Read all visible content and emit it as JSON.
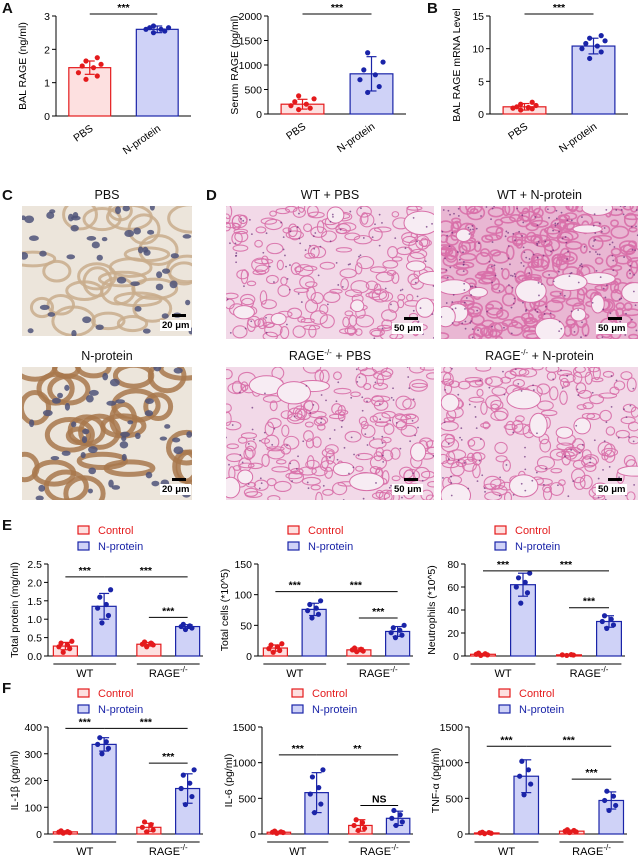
{
  "panel_labels": {
    "a": "A",
    "b": "B",
    "c": "C",
    "d": "D",
    "e": "E",
    "f": "F"
  },
  "image_titles": {
    "c_top": "PBS",
    "c_bottom": "N-protein",
    "d_wt_pbs": "WT + PBS",
    "d_wt_np": "WT + N-protein",
    "d_rage_pbs_main": "RAGE",
    "d_rage_pbs_sup": "-/-",
    "d_rage_pbs_tail": " + PBS",
    "d_rage_np_main": "RAGE",
    "d_rage_np_sup": "-/-",
    "d_rage_np_tail": " + N-protein"
  },
  "scale_labels": {
    "c": "20 μm",
    "d": "50 μm"
  },
  "colors": {
    "control_edge": "#e41a1c",
    "control_fill": "#fde0e0",
    "nprotein_edge": "#1a24a8",
    "nprotein_fill": "#cfd2f7",
    "he_stain": "#d86fa8",
    "he_background": "#f2d9e8",
    "ihc_background": "#ece5db",
    "ihc_tissue": "#b48a5e",
    "ihc_nuclei": "#4f5479"
  },
  "chart_data": [
    {
      "id": "A1",
      "type": "bar",
      "ylabel": "BAL RAGE (ng/ml)",
      "categories": [
        "PBS",
        "N-protein"
      ],
      "values": [
        1.45,
        2.6
      ],
      "errors": [
        0.2,
        0.1
      ],
      "ylim": [
        0,
        3
      ],
      "yticks": [
        "0",
        "1",
        "2",
        "3"
      ],
      "tick_values": [
        0,
        1,
        2,
        3
      ],
      "points": [
        [
          1.1,
          1.2,
          1.3,
          1.45,
          1.5,
          1.55,
          1.65,
          1.75
        ],
        [
          2.5,
          2.55,
          2.6,
          2.6,
          2.65,
          2.65,
          2.7
        ]
      ],
      "sig": [
        {
          "a": 0,
          "b": 1,
          "label": "***"
        }
      ]
    },
    {
      "id": "A2",
      "type": "bar",
      "ylabel": "Serum RAGE (pg/ml)",
      "categories": [
        "PBS",
        "N-protein"
      ],
      "values": [
        200,
        820
      ],
      "errors": [
        100,
        350
      ],
      "ylim": [
        0,
        2000
      ],
      "yticks": [
        "0",
        "500",
        "1000",
        "1500",
        "2000"
      ],
      "tick_values": [
        0,
        500,
        1000,
        1500,
        2000
      ],
      "points": [
        [
          90,
          120,
          170,
          200,
          250,
          310,
          370
        ],
        [
          440,
          560,
          700,
          800,
          900,
          1060,
          1250
        ]
      ],
      "sig": [
        {
          "a": 0,
          "b": 1,
          "label": "***"
        }
      ]
    },
    {
      "id": "B",
      "type": "bar",
      "ylabel": "BAL RAGE mRNA Level",
      "categories": [
        "PBS",
        "N-protein"
      ],
      "values": [
        1.1,
        10.4
      ],
      "errors": [
        0.5,
        1.2
      ],
      "ylim": [
        0,
        15
      ],
      "yticks": [
        "0",
        "5",
        "10",
        "15"
      ],
      "tick_values": [
        0,
        5,
        10,
        15
      ],
      "points": [
        [
          0.6,
          0.8,
          0.9,
          1.0,
          1.1,
          1.3,
          1.5,
          1.8
        ],
        [
          8.5,
          9.5,
          10.0,
          10.4,
          10.8,
          11.2,
          11.6,
          12.0
        ]
      ],
      "sig": [
        {
          "a": 0,
          "b": 1,
          "label": "***"
        }
      ]
    },
    {
      "id": "E1",
      "type": "bar",
      "ylabel": "Total protein (mg/ml)",
      "groups": [
        "WT",
        "RAGE"
      ],
      "group_sup": "-/-",
      "series": [
        {
          "name": "Control",
          "values": [
            0.27,
            0.32
          ],
          "errors": [
            0.1,
            0.05
          ]
        },
        {
          "name": "N-protein",
          "values": [
            1.35,
            0.8
          ],
          "errors": [
            0.35,
            0.05
          ]
        }
      ],
      "ylim": [
        0,
        2.5
      ],
      "yticks": [
        "0.0",
        "0.5",
        "1.0",
        "1.5",
        "2.0",
        "2.5"
      ],
      "tick_values": [
        0,
        0.5,
        1,
        1.5,
        2,
        2.5
      ],
      "points": [
        [
          0.1,
          0.2,
          0.25,
          0.3,
          0.35,
          0.4
        ],
        [
          0.9,
          1.1,
          1.3,
          1.4,
          1.6,
          1.8
        ],
        [
          0.25,
          0.3,
          0.32,
          0.35,
          0.38
        ],
        [
          0.72,
          0.76,
          0.8,
          0.82,
          0.86
        ]
      ],
      "sig": [
        {
          "a": 0,
          "b": 1,
          "label": "***",
          "level": 2.15
        },
        {
          "a": 1,
          "b": 3,
          "label": "***",
          "level": 2.15
        },
        {
          "a": 2,
          "b": 3,
          "label": "***",
          "level": 1.05
        }
      ]
    },
    {
      "id": "E2",
      "type": "bar",
      "ylabel": "Total cells (*10^5)",
      "groups": [
        "WT",
        "RAGE"
      ],
      "group_sup": "-/-",
      "series": [
        {
          "name": "Control",
          "values": [
            13,
            10
          ],
          "errors": [
            5,
            3
          ]
        },
        {
          "name": "N-protein",
          "values": [
            76,
            40
          ],
          "errors": [
            10,
            8
          ]
        }
      ],
      "ylim": [
        0,
        150
      ],
      "yticks": [
        "0",
        "50",
        "100",
        "150"
      ],
      "tick_values": [
        0,
        50,
        100,
        150
      ],
      "points": [
        [
          6,
          9,
          12,
          15,
          18,
          20
        ],
        [
          62,
          68,
          74,
          78,
          84,
          90
        ],
        [
          7,
          8,
          10,
          11,
          13
        ],
        [
          30,
          34,
          38,
          42,
          46,
          50
        ]
      ],
      "sig": [
        {
          "a": 0,
          "b": 1,
          "label": "***",
          "level": 105
        },
        {
          "a": 1,
          "b": 3,
          "label": "***",
          "level": 105
        },
        {
          "a": 2,
          "b": 3,
          "label": "***",
          "level": 62
        }
      ]
    },
    {
      "id": "E3",
      "type": "bar",
      "ylabel": "Neutrophils (*10^5)",
      "groups": [
        "WT",
        "RAGE"
      ],
      "group_sup": "-/-",
      "series": [
        {
          "name": "Control",
          "values": [
            1.5,
            1.0
          ],
          "errors": [
            0.8,
            0.5
          ]
        },
        {
          "name": "N-protein",
          "values": [
            62,
            30
          ],
          "errors": [
            10,
            5
          ]
        }
      ],
      "ylim": [
        0,
        80
      ],
      "yticks": [
        "0",
        "20",
        "40",
        "60",
        "80"
      ],
      "tick_values": [
        0,
        20,
        40,
        60,
        80
      ],
      "points": [
        [
          0.5,
          1,
          1.5,
          2,
          2.5
        ],
        [
          46,
          55,
          60,
          64,
          68,
          72
        ],
        [
          0.5,
          0.8,
          1,
          1.2
        ],
        [
          24,
          27,
          30,
          32,
          35
        ]
      ],
      "sig": [
        {
          "a": 0,
          "b": 1,
          "label": "***",
          "level": 74
        },
        {
          "a": 1,
          "b": 3,
          "label": "***",
          "level": 74
        },
        {
          "a": 2,
          "b": 3,
          "label": "***",
          "level": 42
        }
      ]
    },
    {
      "id": "F1",
      "type": "bar",
      "ylabel": "IL-1β (pg/ml)",
      "groups": [
        "WT",
        "RAGE"
      ],
      "group_sup": "-/-",
      "series": [
        {
          "name": "Control",
          "values": [
            8,
            25
          ],
          "errors": [
            4,
            15
          ]
        },
        {
          "name": "N-protein",
          "values": [
            335,
            170
          ],
          "errors": [
            25,
            55
          ]
        }
      ],
      "ylim": [
        0,
        400
      ],
      "yticks": [
        "0",
        "100",
        "200",
        "300",
        "400"
      ],
      "tick_values": [
        0,
        100,
        200,
        300,
        400
      ],
      "points": [
        [
          3,
          5,
          7,
          9,
          12
        ],
        [
          300,
          320,
          335,
          345,
          360
        ],
        [
          8,
          15,
          25,
          35,
          45
        ],
        [
          110,
          140,
          170,
          190,
          220,
          240
        ]
      ],
      "sig": [
        {
          "a": 0,
          "b": 1,
          "label": "***",
          "level": 395
        },
        {
          "a": 1,
          "b": 3,
          "label": "***",
          "level": 395
        },
        {
          "a": 2,
          "b": 3,
          "label": "***",
          "level": 265
        }
      ]
    },
    {
      "id": "F2",
      "type": "bar",
      "ylabel": "IL-6 (pg/ml)",
      "groups": [
        "WT",
        "RAGE"
      ],
      "group_sup": "-/-",
      "series": [
        {
          "name": "Control",
          "values": [
            25,
            120
          ],
          "errors": [
            15,
            80
          ]
        },
        {
          "name": "N-protein",
          "values": [
            580,
            220
          ],
          "errors": [
            280,
            100
          ]
        }
      ],
      "ylim": [
        0,
        1500
      ],
      "yticks": [
        "0",
        "500",
        "1000",
        "1500"
      ],
      "tick_values": [
        0,
        500,
        1000,
        1500
      ],
      "points": [
        [
          10,
          20,
          25,
          30,
          40
        ],
        [
          300,
          420,
          560,
          650,
          800,
          900
        ],
        [
          50,
          80,
          120,
          160,
          200
        ],
        [
          120,
          170,
          220,
          270,
          330
        ]
      ],
      "sig": [
        {
          "a": 0,
          "b": 1,
          "label": "***",
          "level": 1110
        },
        {
          "a": 1,
          "b": 3,
          "label": "**",
          "level": 1110
        },
        {
          "a": 2,
          "b": 3,
          "label": "NS",
          "level": 400
        }
      ]
    },
    {
      "id": "F3",
      "type": "bar",
      "ylabel": "TNF-α (pg/ml)",
      "groups": [
        "WT",
        "RAGE"
      ],
      "group_sup": "-/-",
      "series": [
        {
          "name": "Control",
          "values": [
            15,
            40
          ],
          "errors": [
            8,
            15
          ]
        },
        {
          "name": "N-protein",
          "values": [
            810,
            470
          ],
          "errors": [
            230,
            120
          ]
        }
      ],
      "ylim": [
        0,
        1500
      ],
      "yticks": [
        "0",
        "500",
        "1000",
        "1500"
      ],
      "tick_values": [
        0,
        500,
        1000,
        1500
      ],
      "points": [
        [
          5,
          10,
          15,
          20,
          25
        ],
        [
          550,
          700,
          810,
          900,
          1020
        ],
        [
          20,
          30,
          40,
          50,
          60
        ],
        [
          330,
          400,
          470,
          530,
          600
        ]
      ],
      "sig": [
        {
          "a": 0,
          "b": 1,
          "label": "***",
          "level": 1230
        },
        {
          "a": 1,
          "b": 3,
          "label": "***",
          "level": 1230
        },
        {
          "a": 2,
          "b": 3,
          "label": "***",
          "level": 770
        }
      ]
    }
  ],
  "legend": {
    "control": "Control",
    "nprotein": "N-protein"
  }
}
